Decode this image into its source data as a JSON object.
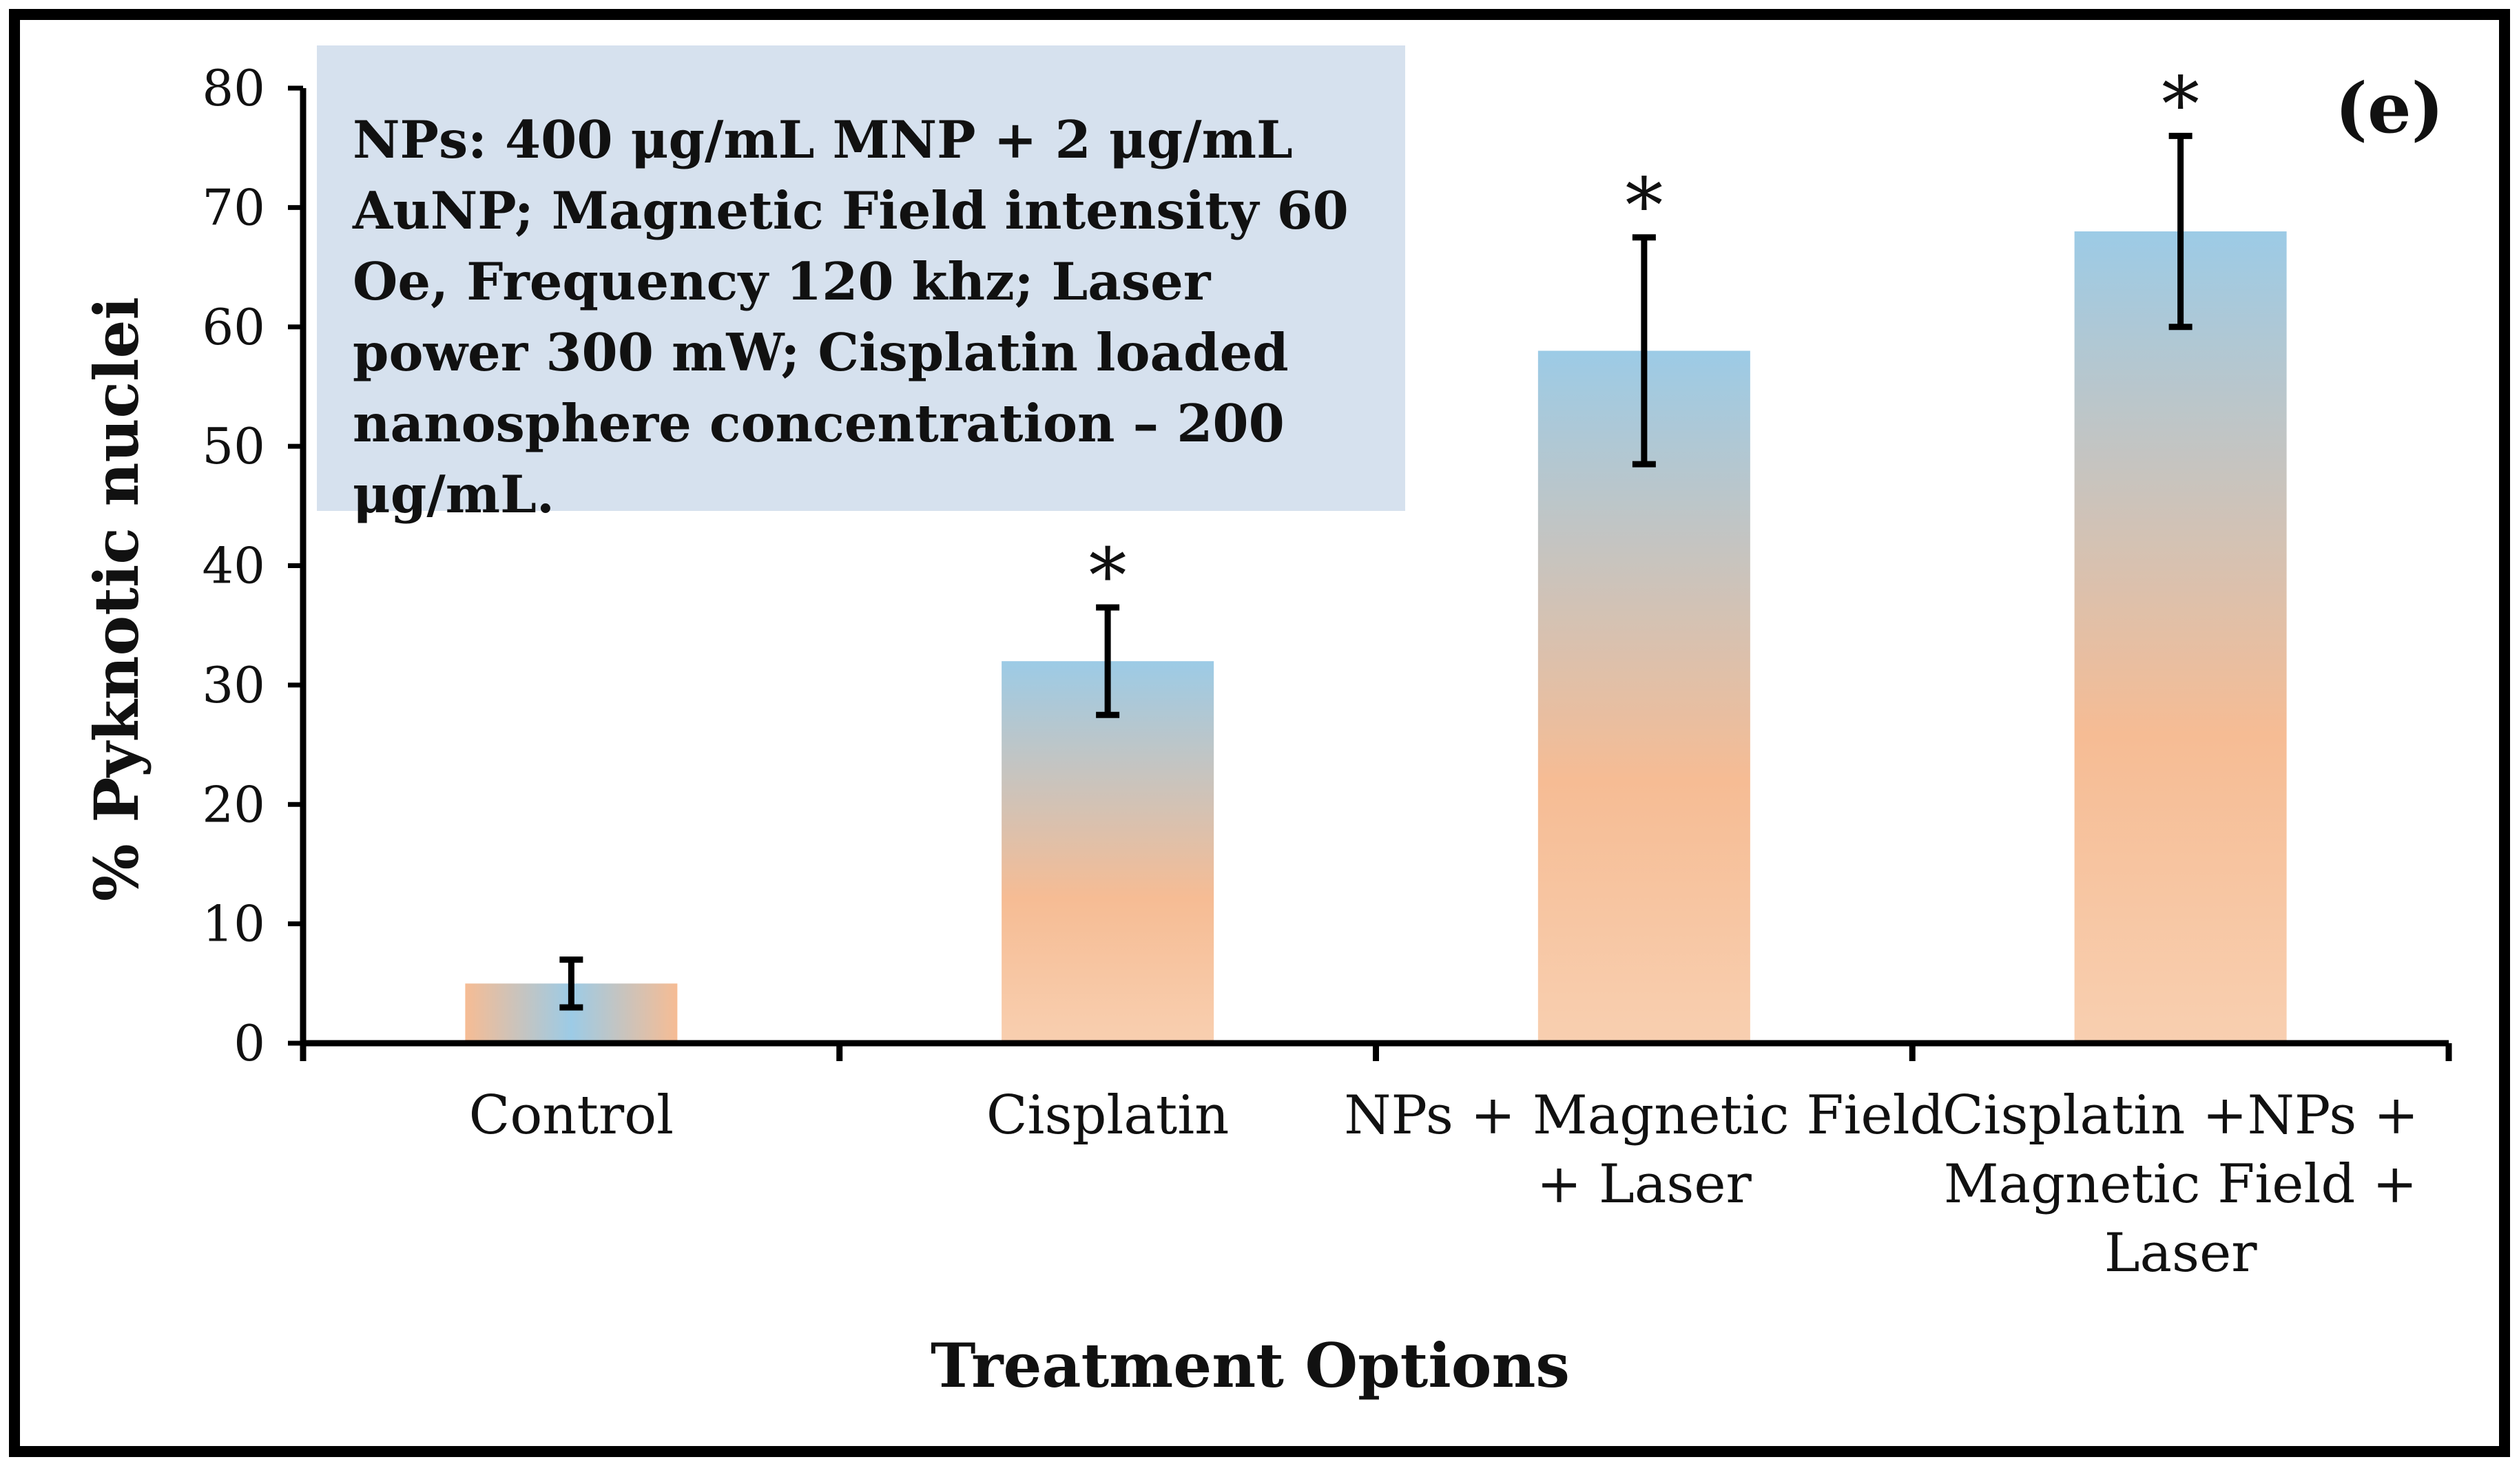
{
  "chart_data": {
    "type": "bar",
    "categories": [
      [
        "Control"
      ],
      [
        "Cisplatin"
      ],
      [
        "NPs + Magnetic Field",
        "+ Laser"
      ],
      [
        "Cisplatin +NPs +",
        "Magnetic Field +",
        "Laser"
      ]
    ],
    "values": [
      5,
      32,
      58,
      68
    ],
    "errors": [
      2,
      4.5,
      9.5,
      8
    ],
    "significance": [
      "",
      "*",
      "*",
      "*"
    ],
    "ylabel": "% Pyknotic nuclei",
    "xlabel": "Treatment Options",
    "ylim": [
      0,
      80
    ],
    "yticks": [
      0,
      10,
      20,
      30,
      40,
      50,
      60,
      70,
      80
    ],
    "panel_label": "(e)",
    "annotation": "NPs: 400 μg/mL MNP + 2 μg/mL AuNP; Magnetic Field intensity 60 Oe, Frequency 120 khz; Laser power 300 mW; Cisplatin loaded nanosphere concentration – 200 μg/mL.",
    "bar_gradient": [
      "#9ccbe6",
      "#f6bc94",
      "#f8cfb0"
    ]
  }
}
